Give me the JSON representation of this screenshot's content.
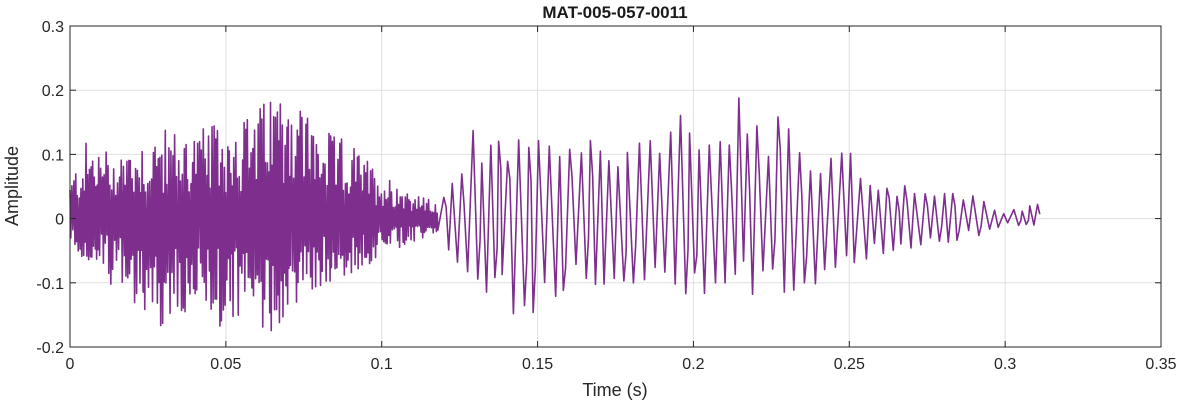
{
  "chart_data": {
    "type": "line",
    "title": "MAT-005-057-0011",
    "xlabel": "Time (s)",
    "ylabel": "Amplitude",
    "xlim": [
      0,
      0.35
    ],
    "ylim": [
      -0.2,
      0.3
    ],
    "x_ticks": [
      0,
      0.05,
      0.1,
      0.15,
      0.2,
      0.25,
      0.3,
      0.35
    ],
    "x_tick_labels": [
      "0",
      "0.05",
      "0.1",
      "0.15",
      "0.2",
      "0.25",
      "0.3",
      "0.35"
    ],
    "y_ticks": [
      -0.2,
      -0.1,
      0,
      0.1,
      0.2,
      0.3
    ],
    "y_tick_labels": [
      "-0.2",
      "-0.1",
      "0",
      "0.1",
      "0.2",
      "0.3"
    ],
    "grid": true,
    "series": [
      {
        "color": "#7e2f8e",
        "x_range": [
          0,
          0.311
        ],
        "envelope": {
          "t": [
            0,
            0.005,
            0.01,
            0.02,
            0.03,
            0.04,
            0.05,
            0.06,
            0.065,
            0.07,
            0.08,
            0.09,
            0.1,
            0.105,
            0.11,
            0.115,
            0.118,
            0.122,
            0.13,
            0.14,
            0.15,
            0.16,
            0.17,
            0.18,
            0.19,
            0.2,
            0.21,
            0.215,
            0.22,
            0.23,
            0.24,
            0.25,
            0.26,
            0.27,
            0.28,
            0.29,
            0.3,
            0.305,
            0.311
          ],
          "max": [
            0.06,
            0.12,
            0.11,
            0.12,
            0.14,
            0.14,
            0.15,
            0.17,
            0.2,
            0.22,
            0.14,
            0.12,
            0.07,
            0.06,
            0.04,
            0.03,
            0.02,
            0.06,
            0.15,
            0.12,
            0.14,
            0.13,
            0.12,
            0.13,
            0.16,
            0.19,
            0.19,
            0.195,
            0.17,
            0.16,
            0.12,
            0.11,
            0.06,
            0.06,
            0.05,
            0.04,
            0.01,
            0.02,
            0.025
          ],
          "min": [
            -0.04,
            -0.07,
            -0.09,
            -0.13,
            -0.18,
            -0.16,
            -0.17,
            -0.18,
            -0.18,
            -0.15,
            -0.11,
            -0.09,
            -0.06,
            -0.05,
            -0.04,
            -0.03,
            -0.02,
            -0.06,
            -0.17,
            -0.15,
            -0.15,
            -0.12,
            -0.12,
            -0.13,
            -0.13,
            -0.13,
            -0.12,
            -0.12,
            -0.12,
            -0.12,
            -0.11,
            -0.09,
            -0.06,
            -0.05,
            -0.04,
            -0.03,
            -0.01,
            -0.012,
            -0.01
          ]
        }
      }
    ]
  },
  "style": {
    "line_color": "#7e2f8e",
    "grid_color": "#e0e0e0",
    "axis_color": "#262626"
  }
}
